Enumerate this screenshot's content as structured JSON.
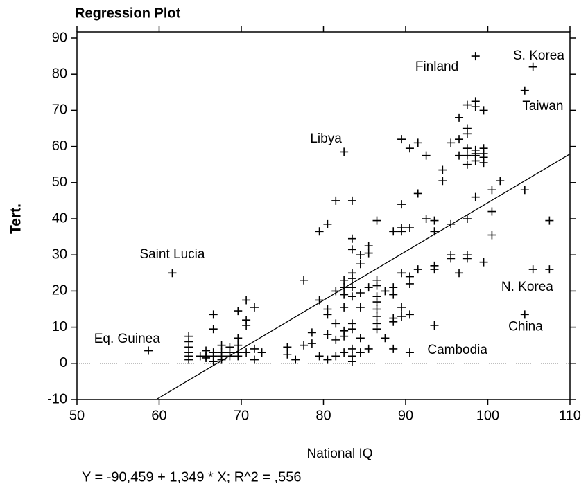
{
  "chart_data": {
    "type": "scatter",
    "title": "Regression Plot",
    "xlabel": "National IQ",
    "ylabel": "Tert.",
    "footnote": "Y = -90,459 + 1,349 * X; R^2 = ,556",
    "xlim": [
      50,
      110
    ],
    "ylim": [
      -10,
      90
    ],
    "xticks": [
      50,
      60,
      70,
      80,
      90,
      100,
      110
    ],
    "yticks": [
      -10,
      0,
      10,
      20,
      30,
      40,
      50,
      60,
      70,
      80,
      90
    ],
    "color": "#000000",
    "hline": 0,
    "regression": {
      "intercept": -90.459,
      "slope": 1.349
    },
    "x": [
      58.7,
      61.6,
      63.6,
      63.6,
      63.6,
      63.6,
      63.6,
      63.6,
      65,
      65.7,
      65.7,
      65.7,
      66.6,
      66.6,
      66.6,
      66.6,
      66.6,
      67.6,
      67.6,
      67.6,
      67.6,
      68.6,
      68.6,
      68.6,
      69.6,
      69.6,
      69.6,
      69.6,
      69.6,
      70.6,
      70.6,
      70.6,
      70.6,
      71.6,
      71.6,
      71.6,
      72.5,
      75.6,
      75.6,
      76.6,
      77.6,
      77.6,
      78.6,
      78.6,
      79.5,
      79.5,
      79.5,
      80.5,
      80.5,
      80.5,
      80.5,
      80.5,
      81.5,
      81.5,
      81.5,
      81.5,
      81.5,
      82.5,
      82.5,
      82.5,
      82.5,
      82.5,
      82.5,
      82.5,
      82.5,
      83.5,
      83.5,
      83.5,
      83.5,
      83.5,
      83.5,
      83.5,
      83.5,
      83.5,
      83.5,
      83.5,
      83.5,
      84.5,
      84.5,
      84.5,
      84.5,
      84.5,
      84.5,
      85.5,
      85.5,
      85.5,
      85.5,
      86.5,
      86.5,
      86.5,
      86.5,
      86.5,
      86.5,
      86.5,
      86.5,
      86.5,
      87.5,
      87.5,
      88.5,
      88.5,
      88.5,
      88.5,
      88.5,
      88.5,
      89.5,
      89.5,
      89.5,
      89.5,
      89.5,
      89.5,
      89.5,
      90.5,
      90.5,
      90.5,
      90.5,
      90.5,
      90.5,
      91.5,
      91.5,
      91.5,
      92.5,
      92.5,
      93.5,
      93.5,
      93.5,
      93.5,
      93.5,
      94.5,
      94.5,
      95.5,
      95.5,
      95.5,
      95.5,
      96.5,
      96.5,
      96.5,
      96.5,
      97.5,
      97.5,
      97.5,
      97.5,
      97.5,
      97.5,
      97.5,
      97.5,
      97.5,
      98.5,
      98.5,
      98.5,
      98.5,
      98.5,
      98.5,
      98.5,
      98.5,
      99.5,
      99.5,
      99.5,
      99.5,
      99.5,
      99.5,
      100.5,
      100.5,
      100.5,
      101.5,
      104.5,
      104.5,
      104.5,
      105.5,
      105.5,
      107.5,
      107.5
    ],
    "y": [
      3.5,
      25,
      1,
      2,
      3,
      4.5,
      6,
      7.5,
      2,
      2,
      3.5,
      1.5,
      13.5,
      9.5,
      0.5,
      2,
      3,
      1,
      2,
      3,
      5,
      2,
      3,
      4.5,
      14.5,
      7,
      5,
      3,
      2,
      17.5,
      12,
      10.5,
      3,
      15.5,
      4,
      1,
      3,
      4.5,
      2.5,
      1,
      23,
      5,
      5.5,
      8.5,
      36.5,
      17.5,
      2,
      38.5,
      15,
      13.5,
      8,
      1,
      45,
      20,
      11,
      6.5,
      2,
      58.5,
      23,
      21,
      19,
      15.5,
      9,
      3,
      7.5,
      45,
      34.5,
      31.5,
      25,
      23.5,
      21,
      18.5,
      11,
      9.5,
      4,
      2,
      0.5,
      30,
      27.5,
      19.5,
      15.5,
      7,
      3,
      32.5,
      30.5,
      21,
      4,
      39.5,
      23,
      21.5,
      18.5,
      17,
      15,
      13,
      11,
      9.5,
      20,
      7,
      36.5,
      21,
      19,
      12.5,
      11.5,
      4,
      62,
      44,
      37.5,
      36.5,
      25,
      15.5,
      13,
      59.5,
      37.5,
      24,
      22,
      13.5,
      3,
      61,
      47,
      26,
      57.5,
      40,
      39.5,
      36.5,
      27,
      26,
      10.5,
      53.5,
      50.5,
      61,
      38.5,
      30,
      29,
      68,
      62,
      57.5,
      25,
      71.5,
      65,
      63.5,
      59.5,
      57.5,
      55,
      40,
      30,
      29,
      85,
      72.5,
      71,
      59,
      58,
      57.5,
      56,
      46,
      70,
      59.5,
      58,
      57,
      55.5,
      28,
      48,
      42,
      35.5,
      50.5,
      75.5,
      48,
      13.5,
      82,
      26,
      39.5,
      26
    ],
    "annotations": [
      {
        "text": "Finland",
        "x": 93.8,
        "y": 82
      },
      {
        "text": "S. Korea",
        "x": 106.2,
        "y": 85
      },
      {
        "text": "Taiwan",
        "x": 106.7,
        "y": 71
      },
      {
        "text": "Libya",
        "x": 80.3,
        "y": 62
      },
      {
        "text": "Saint Lucia",
        "x": 61.6,
        "y": 30
      },
      {
        "text": "Eq. Guinea",
        "x": 56.1,
        "y": 6.7
      },
      {
        "text": "N. Korea",
        "x": 104.8,
        "y": 21
      },
      {
        "text": "China",
        "x": 104.6,
        "y": 10
      },
      {
        "text": "Cambodia",
        "x": 96.3,
        "y": 3.6
      }
    ]
  }
}
